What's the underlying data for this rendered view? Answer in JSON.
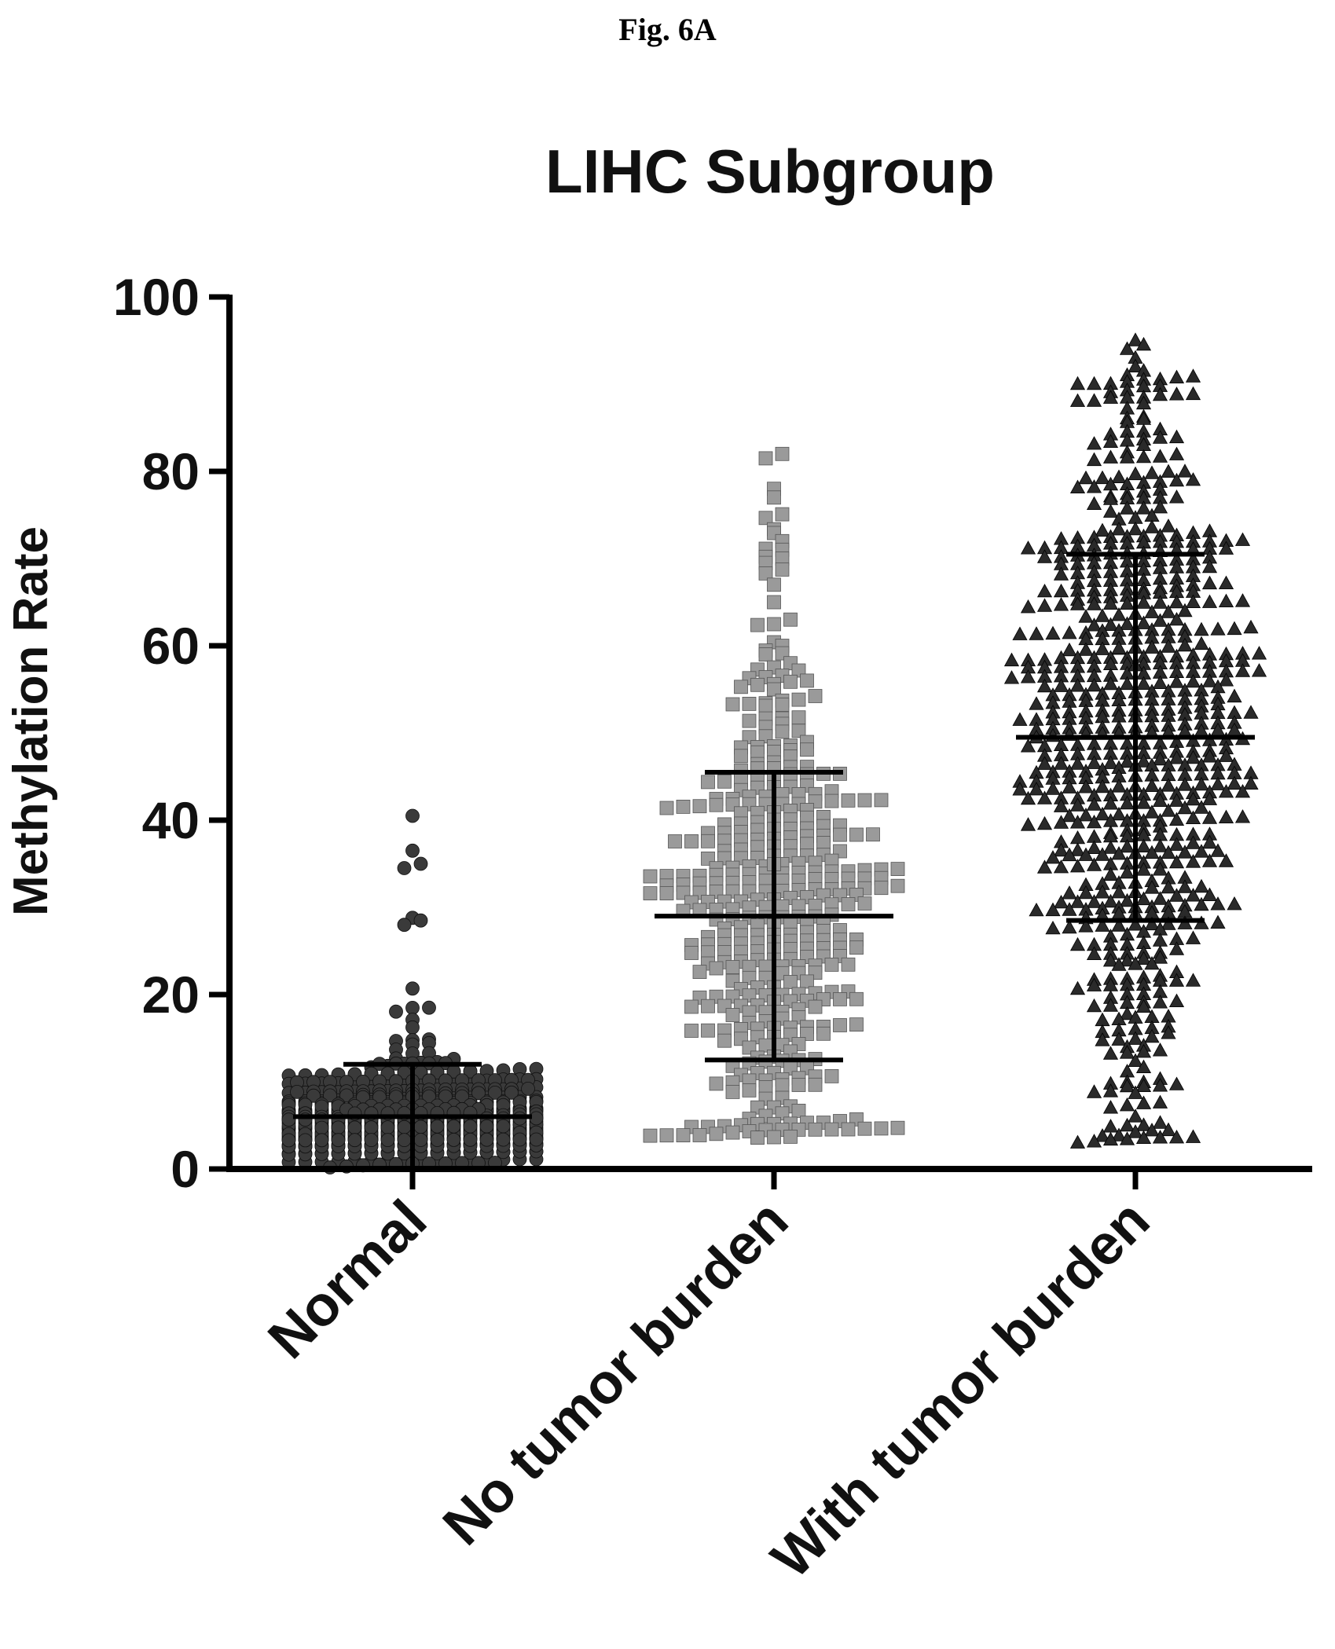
{
  "figure_label": "Fig. 6A",
  "chart_data": {
    "type": "scatter",
    "title": "LIHC Subgroup",
    "ylabel": "Methylation Rate",
    "xlabel": "",
    "ylim": [
      0,
      100
    ],
    "yticks": [
      0,
      20,
      40,
      60,
      80,
      100
    ],
    "categories": [
      "Normal",
      "No tumor burden",
      "With tumor burden"
    ],
    "series": [
      {
        "category": "Normal",
        "marker": "circle",
        "color": "#3a3a3a",
        "mean": 6,
        "sd_low": 0,
        "sd_high": 12,
        "min": 0,
        "max": 40.5,
        "n": 600,
        "highlight_values": [
          40.5,
          36.5,
          35,
          34.5,
          28.8,
          28.5,
          28
        ]
      },
      {
        "category": "No tumor burden",
        "marker": "square",
        "color": "#9a9a9a",
        "mean": 29,
        "sd_low": 12.5,
        "sd_high": 45.5,
        "min": 3.5,
        "max": 82,
        "n": 420,
        "highlight_values": [
          82,
          81.5,
          78,
          77,
          72,
          70,
          69.5,
          67,
          65,
          63,
          60,
          59,
          58,
          56,
          55
        ]
      },
      {
        "category": "With tumor burden",
        "marker": "triangle",
        "color": "#2a2a2a",
        "mean": 49.5,
        "sd_low": 28.5,
        "sd_high": 70.5,
        "min": 3,
        "max": 95,
        "n": 700,
        "highlight_values": [
          95,
          94.5,
          94,
          93,
          92,
          91.5,
          91,
          90,
          7,
          6,
          5,
          3
        ]
      }
    ]
  }
}
